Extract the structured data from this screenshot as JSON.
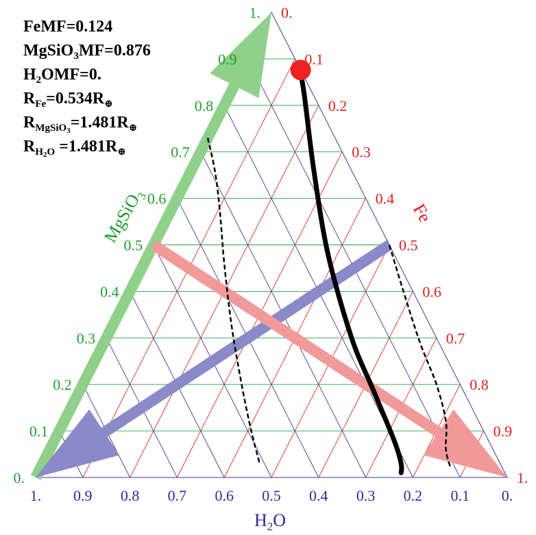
{
  "info": {
    "fe_mf": "FeMF=0.124",
    "mgsio3_prefix": "MgSiO",
    "mgsio3_sub": "3",
    "mgsio3_suffix": "MF=0.876",
    "h2o_prefix": "H",
    "h2o_sub": "2",
    "h2o_suffix": "OMF=0.",
    "r_fe_prefix": "R",
    "r_fe_sub": "Fe",
    "r_fe_suffix": "=0.534R",
    "r_mgsio3_prefix": "R",
    "r_mgsio3_sub": "MgSiO",
    "r_mgsio3_subsub": "3",
    "r_mgsio3_suffix": "=1.481R",
    "r_h2o_prefix": "R",
    "r_h2o_sub": "H",
    "r_h2o_subsub": "2",
    "r_h2o_sub2": "O",
    "r_h2o_suffix": " =1.481R",
    "earth_symbol": "⊕"
  },
  "chart_data": {
    "type": "ternary",
    "axes": {
      "h2o": {
        "label_prefix": "H",
        "label_sub": "2",
        "label_suffix": "O",
        "color": "#2a2a99",
        "ticks": [
          "1.",
          "0.9",
          "0.8",
          "0.7",
          "0.6",
          "0.5",
          "0.4",
          "0.3",
          "0.2",
          "0.1",
          "0."
        ]
      },
      "mgsio3": {
        "label": "MgSiO3",
        "color": "#1e9e2e",
        "ticks": [
          "0.",
          "0.1",
          "0.2",
          "0.3",
          "0.4",
          "0.5",
          "0.6",
          "0.7",
          "0.8",
          "0.9",
          "1."
        ]
      },
      "fe": {
        "label": "Fe",
        "color": "#e01e1e",
        "ticks": [
          "0.",
          "0.1",
          "0.2",
          "0.3",
          "0.4",
          "0.5",
          "0.6",
          "0.7",
          "0.8",
          "0.9",
          "1."
        ]
      }
    },
    "grid_colors": {
      "h2o": "#3a3aa0",
      "mgsio3": "#22a33a",
      "fe": "#e02a2a"
    },
    "marker": {
      "fe": 0.124,
      "mgsio3": 0.876,
      "h2o": 0.0,
      "color": "#ee2222"
    },
    "arrows": [
      {
        "name": "mgsio3-arrow",
        "color": "#8fd08a",
        "from": {
          "fe": 0.0,
          "mgsio3": 0.0,
          "h2o": 1.0
        },
        "to": {
          "fe": 0.0,
          "mgsio3": 1.0,
          "h2o": 0.0
        }
      },
      {
        "name": "h2o-arrow",
        "color": "#8a8ac8",
        "from": {
          "fe": 0.5,
          "mgsio3": 0.5,
          "h2o": 0.0
        },
        "to": {
          "fe": 0.0,
          "mgsio3": 0.0,
          "h2o": 1.0
        }
      },
      {
        "name": "fe-arrow",
        "color": "#f29a9a",
        "from": {
          "fe": 0.0,
          "mgsio3": 0.5,
          "h2o": 0.5
        },
        "to": {
          "fe": 1.0,
          "mgsio3": 0.0,
          "h2o": 0.0
        }
      }
    ],
    "solid_curve": [
      {
        "fe": 0.12,
        "mgsio3": 0.88
      },
      {
        "fe": 0.16,
        "mgsio3": 0.82
      },
      {
        "fe": 0.26,
        "mgsio3": 0.66
      },
      {
        "fe": 0.38,
        "mgsio3": 0.48
      },
      {
        "fe": 0.52,
        "mgsio3": 0.3
      },
      {
        "fe": 0.62,
        "mgsio3": 0.19
      },
      {
        "fe": 0.72,
        "mgsio3": 0.08
      },
      {
        "fe": 0.76,
        "mgsio3": 0.03
      },
      {
        "fe": 0.77,
        "mgsio3": 0.01
      }
    ],
    "dashed_curve_left": [
      {
        "fe": 0.0,
        "mgsio3": 0.73
      },
      {
        "fe": 0.05,
        "mgsio3": 0.66
      },
      {
        "fe": 0.1,
        "mgsio3": 0.58
      },
      {
        "fe": 0.17,
        "mgsio3": 0.46
      },
      {
        "fe": 0.25,
        "mgsio3": 0.33
      },
      {
        "fe": 0.33,
        "mgsio3": 0.21
      },
      {
        "fe": 0.4,
        "mgsio3": 0.11
      },
      {
        "fe": 0.46,
        "mgsio3": 0.03
      }
    ],
    "dashed_curve_right": [
      {
        "fe": 0.5,
        "mgsio3": 0.5
      },
      {
        "fe": 0.58,
        "mgsio3": 0.4
      },
      {
        "fe": 0.67,
        "mgsio3": 0.29
      },
      {
        "fe": 0.75,
        "mgsio3": 0.2
      },
      {
        "fe": 0.81,
        "mgsio3": 0.12
      },
      {
        "fe": 0.84,
        "mgsio3": 0.06
      },
      {
        "fe": 0.87,
        "mgsio3": 0.02
      }
    ]
  }
}
